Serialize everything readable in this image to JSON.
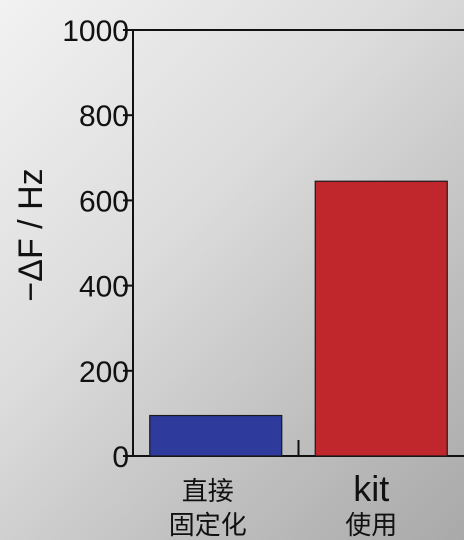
{
  "chart_data": {
    "type": "bar",
    "categories": [
      {
        "lines": [
          "直接",
          "固定化"
        ],
        "style": "cat-main"
      },
      {
        "lines": [
          "kit",
          "使用"
        ],
        "style": "mixed"
      }
    ],
    "values": [
      95,
      645
    ],
    "colors": [
      "#2e3a9c",
      "#c0272d"
    ],
    "ylabel": "−ΔF / Hz",
    "ylim": [
      0,
      1000
    ],
    "yticks": [
      0,
      200,
      400,
      600,
      800,
      1000
    ]
  }
}
